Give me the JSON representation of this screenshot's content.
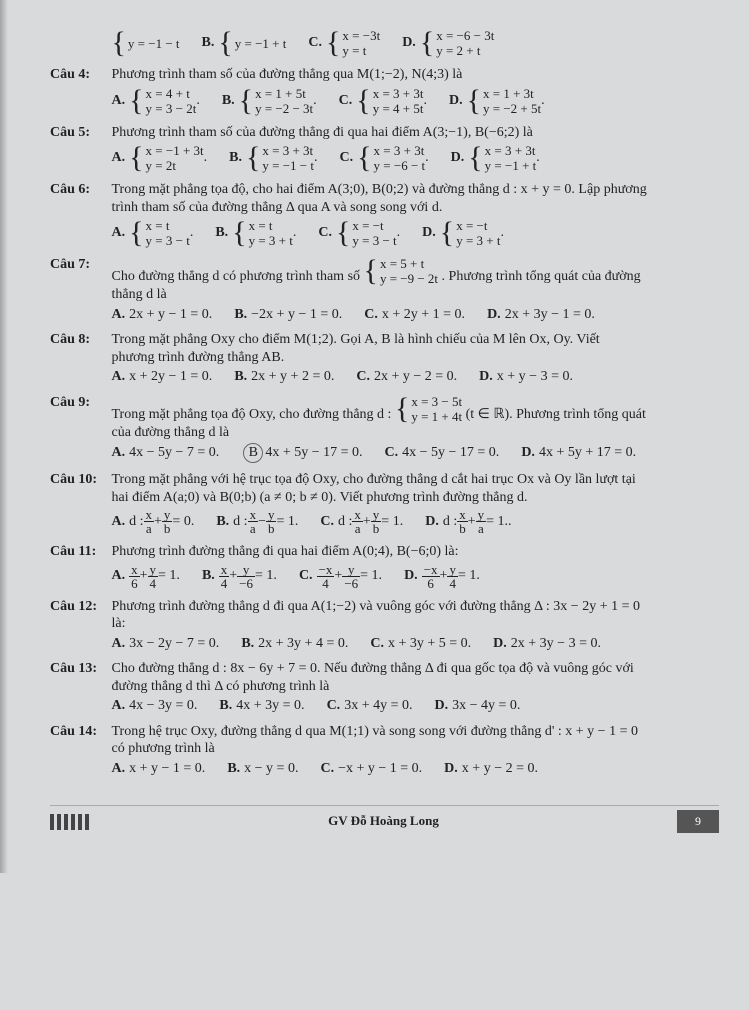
{
  "topRow": {
    "a": [
      "y = −1 − t"
    ],
    "blabel": "B.",
    "b": [
      "y = −1 + t"
    ],
    "clabel": "C.",
    "c": [
      "x = −3t",
      "y = t"
    ],
    "dlabel": "D.",
    "d": [
      "x = −6 − 3t",
      "y = 2 + t"
    ]
  },
  "q4": {
    "label": "Câu 4:",
    "text": "Phương trình tham số của đường thẳng qua M(1;−2), N(4;3) là",
    "opts": {
      "A": [
        "x = 4 + t",
        "y = 3 − 2t"
      ],
      "B": [
        "x = 1 + 5t",
        "y = −2 − 3t"
      ],
      "C": [
        "x = 3 + 3t",
        "y = 4 + 5t"
      ],
      "D": [
        "x = 1 + 3t",
        "y = −2 + 5t"
      ]
    }
  },
  "q5": {
    "label": "Câu 5:",
    "text": "Phương trình tham số của đường thẳng đi qua hai điểm A(3;−1), B(−6;2) là",
    "opts": {
      "A": [
        "x = −1 + 3t",
        "y = 2t"
      ],
      "B": [
        "x = 3 + 3t",
        "y = −1 − t"
      ],
      "C": [
        "x = 3 + 3t",
        "y = −6 − t"
      ],
      "D": [
        "x = 3 + 3t",
        "y = −1 + t"
      ]
    }
  },
  "q6": {
    "label": "Câu 6:",
    "text1": "Trong mặt phẳng tọa độ, cho hai điểm A(3;0), B(0;2) và đường thẳng d : x + y = 0. Lập phương",
    "text2": "trình tham số của đường thẳng Δ qua A và song song với d.",
    "opts": {
      "A": [
        "x = t",
        "y = 3 − t"
      ],
      "B": [
        "x = t",
        "y = 3 + t"
      ],
      "C": [
        "x = −t",
        "y = 3 − t"
      ],
      "D": [
        "x = −t",
        "y = 3 + t"
      ]
    }
  },
  "q7": {
    "label": "Câu 7:",
    "textA": "Cho đường thẳng d có phương trình tham số ",
    "sys": [
      "x = 5 + t",
      "y = −9 − 2t"
    ],
    "textB": ". Phương trình tổng quát của đường",
    "text2": "thẳng d là",
    "opts": {
      "A": "2x + y − 1 = 0.",
      "B": "−2x + y − 1 = 0.",
      "C": "x + 2y + 1 = 0.",
      "D": "2x + 3y − 1 = 0."
    }
  },
  "q8": {
    "label": "Câu 8:",
    "text1": "Trong mặt phẳng Oxy cho điểm M(1;2). Gọi A, B là hình chiếu của M lên Ox, Oy. Viết",
    "text2": "phương trình đường thẳng AB.",
    "opts": {
      "A": "x + 2y − 1 = 0.",
      "B": "2x + y + 2 = 0.",
      "C": "2x + y − 2 = 0.",
      "D": "x + y − 3 = 0."
    }
  },
  "q9": {
    "label": "Câu 9:",
    "textA": "Trong mặt phẳng tọa độ Oxy, cho đường thẳng d : ",
    "sys": [
      "x = 3 − 5t",
      "y = 1 + 4t"
    ],
    "textB": " (t ∈ ℝ). Phương trình tổng quát",
    "text2": "của đường thẳng d là",
    "opts": {
      "A": "4x − 5y − 7 = 0.",
      "B": "4x + 5y − 17 = 0.",
      "C": "4x − 5y − 17 = 0.",
      "D": "4x + 5y + 17 = 0."
    }
  },
  "q10": {
    "label": "Câu 10:",
    "text1": "Trong mặt phẳng với hệ trục tọa độ Oxy, cho đường thẳng d cắt hai trục Ox và Oy lần lượt tại",
    "text2": "hai điểm A(a;0) và B(0;b) (a ≠ 0; b ≠ 0). Viết phương trình đường thẳng d.",
    "fracs": {
      "A": {
        "one": [
          "x",
          "a"
        ],
        "sign": "+",
        "two": [
          "y",
          "b"
        ],
        "rhs": "= 0."
      },
      "B": {
        "one": [
          "x",
          "a"
        ],
        "sign": "−",
        "two": [
          "y",
          "b"
        ],
        "rhs": "= 1."
      },
      "C": {
        "one": [
          "x",
          "a"
        ],
        "sign": "+",
        "two": [
          "y",
          "b"
        ],
        "rhs": "= 1."
      },
      "D": {
        "one": [
          "x",
          "b"
        ],
        "sign": "+",
        "two": [
          "y",
          "a"
        ],
        "rhs": "= 1.."
      }
    }
  },
  "q11": {
    "label": "Câu 11:",
    "text": "Phương trình đường thẳng đi qua hai điểm A(0;4), B(−6;0) là:",
    "fracs": {
      "A": {
        "one": [
          "x",
          "6"
        ],
        "sign": "+",
        "two": [
          "y",
          "4"
        ],
        "rhs": "= 1."
      },
      "B": {
        "one": [
          "x",
          "4"
        ],
        "sign": "+",
        "two": [
          "y",
          "−6"
        ],
        "rhs": "= 1."
      },
      "C": {
        "one": [
          "−x",
          "4"
        ],
        "sign": "+",
        "two": [
          "y",
          "−6"
        ],
        "rhs": "= 1."
      },
      "D": {
        "one": [
          "−x",
          "6"
        ],
        "sign": "+",
        "two": [
          "y",
          "4"
        ],
        "rhs": "= 1."
      }
    }
  },
  "q12": {
    "label": "Câu 12:",
    "text1": "Phương trình đường thẳng d đi qua A(1;−2) và vuông góc với đường thẳng Δ : 3x − 2y + 1 = 0",
    "text2": "là:",
    "opts": {
      "A": "3x − 2y − 7 = 0.",
      "B": "2x + 3y + 4 = 0.",
      "C": "x + 3y + 5 = 0.",
      "D": "2x + 3y − 3 = 0."
    }
  },
  "q13": {
    "label": "Câu 13:",
    "text1": "Cho đường thẳng d : 8x − 6y + 7 = 0. Nếu đường thẳng Δ đi qua gốc tọa độ và vuông góc với",
    "text2": "đường thẳng d thì Δ có phương trình là",
    "opts": {
      "A": "4x − 3y = 0.",
      "B": "4x + 3y = 0.",
      "C": "3x + 4y = 0.",
      "D": "3x − 4y = 0."
    }
  },
  "q14": {
    "label": "Câu 14:",
    "text1": "Trong hệ trục Oxy, đường thẳng d qua M(1;1) và song song với đường thẳng d' : x + y − 1 = 0",
    "text2": "có phương trình là",
    "opts": {
      "A": "x + y − 1 = 0.",
      "B": "x − y = 0.",
      "C": "−x + y − 1 = 0.",
      "D": "x + y − 2 = 0."
    }
  },
  "footer": {
    "center": "GV Đỗ Hoàng Long",
    "page": "9"
  }
}
